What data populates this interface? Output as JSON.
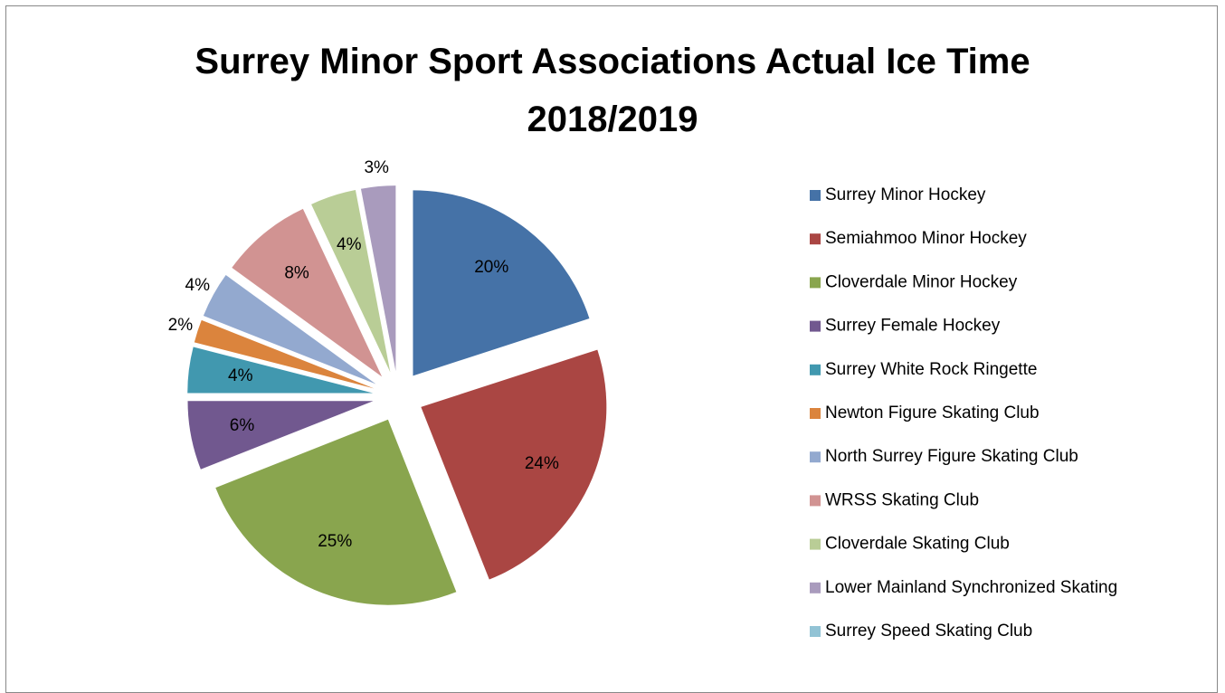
{
  "chart_data": {
    "type": "pie",
    "title": "Surrey Minor Sport Associations Actual Ice Time 2018/2019",
    "categories": [
      "Surrey Minor Hockey",
      "Semiahmoo Minor Hockey",
      "Cloverdale Minor Hockey",
      "Surrey Female Hockey",
      "Surrey White Rock Ringette",
      "Newton Figure Skating Club",
      "North Surrey Figure Skating Club",
      "WRSS Skating Club",
      "Cloverdale Skating Club",
      "Lower Mainland Synchronized Skating",
      "Surrey Speed Skating Club"
    ],
    "values": [
      20,
      24,
      25,
      6,
      4,
      2,
      4,
      8,
      4,
      3,
      0
    ],
    "value_labels": [
      "20%",
      "24%",
      "25%",
      "6%",
      "4%",
      "2%",
      "4%",
      "8%",
      "4%",
      "3%",
      null
    ],
    "colors": [
      "#4572a7",
      "#aa4643",
      "#89a54e",
      "#71588f",
      "#4198af",
      "#db843d",
      "#93a9cf",
      "#d19392",
      "#b9cd96",
      "#a99bbd",
      "#92c3d5"
    ],
    "legend": "right"
  }
}
